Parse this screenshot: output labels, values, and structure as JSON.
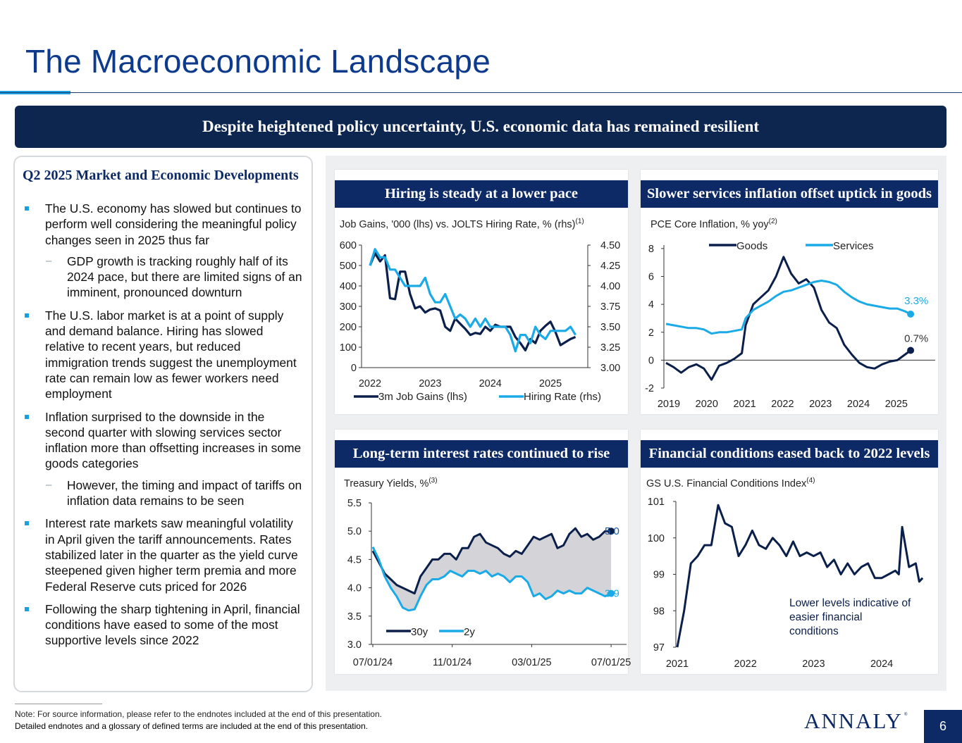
{
  "title": "The Macroeconomic Landscape",
  "banner": "Despite heightened policy uncertainty, U.S. economic data has remained resilient",
  "left": {
    "heading": "Q2 2025 Market and Economic Developments",
    "bullets": [
      {
        "level": 1,
        "text": "The U.S. economy has slowed but continues to perform well considering the meaningful policy changes seen in 2025 thus far"
      },
      {
        "level": 2,
        "text": "GDP growth is tracking roughly half of its 2024 pace, but there are limited signs of an imminent, pronounced downturn"
      },
      {
        "level": 1,
        "text": "The U.S. labor market is at a point of supply and demand balance. Hiring has slowed relative to recent years, but reduced immigration trends suggest the unemployment rate can remain low as fewer workers need employment"
      },
      {
        "level": 1,
        "text": "Inflation surprised to the downside in the second quarter with slowing services sector inflation more than offsetting increases in some goods categories"
      },
      {
        "level": 2,
        "text": "However, the timing and impact of tariffs on inflation data remains to be seen"
      },
      {
        "level": 1,
        "text": "Interest rate markets saw meaningful volatility in April given the tariff announcements. Rates stabilized later in the quarter as the yield curve steepened given higher term premia and more Federal Reserve cuts priced for 2026"
      },
      {
        "level": 1,
        "text": "Following the sharp tightening in April, financial conditions have eased to some of the most supportive levels since 2022"
      }
    ]
  },
  "colors": {
    "navy": "#0d2a66",
    "dark_line": "#0b1f4b",
    "light_line": "#1aaae6",
    "accent": "#1aa0de"
  },
  "chart_data": [
    {
      "type": "line",
      "panel_title": "Hiring is steady at a lower pace",
      "title": "Job Gains, '000 (lhs) vs. JOLTS Hiring Rate, % (rhs)",
      "title_sup": "(1)",
      "x_ticks": [
        "2022",
        "2023",
        "2024",
        "2025"
      ],
      "xlim": [
        2022.0,
        2025.55
      ],
      "y_left": {
        "ticks": [
          "600",
          "500",
          "400",
          "300",
          "200",
          "100",
          "0"
        ],
        "lim": [
          0,
          600
        ]
      },
      "y_right": {
        "ticks": [
          "4.50",
          "4.25",
          "4.00",
          "3.75",
          "3.50",
          "3.25",
          "3.00"
        ],
        "lim": [
          3.0,
          4.5
        ]
      },
      "series": [
        {
          "name": "3m Job Gains (lhs)",
          "axis": "left",
          "color": "#0b1f4b",
          "x": [
            2022.0,
            2022.083,
            2022.167,
            2022.25,
            2022.333,
            2022.417,
            2022.5,
            2022.583,
            2022.667,
            2022.75,
            2022.833,
            2022.917,
            2023.0,
            2023.083,
            2023.167,
            2023.25,
            2023.333,
            2023.417,
            2023.5,
            2023.583,
            2023.667,
            2023.75,
            2023.833,
            2023.917,
            2024.0,
            2024.083,
            2024.167,
            2024.25,
            2024.333,
            2024.417,
            2024.5,
            2024.583,
            2024.667,
            2024.75,
            2024.833,
            2024.917,
            2025.0,
            2025.083,
            2025.167,
            2025.25,
            2025.333,
            2025.417
          ],
          "y": [
            500,
            560,
            520,
            550,
            340,
            335,
            470,
            470,
            360,
            290,
            300,
            270,
            285,
            290,
            280,
            200,
            180,
            240,
            215,
            190,
            160,
            170,
            165,
            200,
            180,
            210,
            200,
            200,
            200,
            150,
            120,
            85,
            140,
            120,
            180,
            205,
            225,
            175,
            110,
            125,
            140,
            150
          ]
        },
        {
          "name": "Hiring Rate (rhs)",
          "axis": "right",
          "color": "#1aaae6",
          "x": [
            2022.0,
            2022.083,
            2022.167,
            2022.25,
            2022.333,
            2022.417,
            2022.5,
            2022.583,
            2022.667,
            2022.75,
            2022.833,
            2022.917,
            2023.0,
            2023.083,
            2023.167,
            2023.25,
            2023.333,
            2023.417,
            2023.5,
            2023.583,
            2023.667,
            2023.75,
            2023.833,
            2023.917,
            2024.0,
            2024.083,
            2024.167,
            2024.25,
            2024.333,
            2024.417,
            2024.5,
            2024.583,
            2024.667,
            2024.75,
            2024.833,
            2024.917,
            2025.0,
            2025.083,
            2025.167,
            2025.25,
            2025.333,
            2025.417
          ],
          "y": [
            4.25,
            4.45,
            4.35,
            4.35,
            4.2,
            4.2,
            4.1,
            4.0,
            4.0,
            4.0,
            4.0,
            4.1,
            3.9,
            3.8,
            3.8,
            3.9,
            3.75,
            3.6,
            3.65,
            3.6,
            3.5,
            3.6,
            3.5,
            3.6,
            3.5,
            3.5,
            3.5,
            3.5,
            3.4,
            3.2,
            3.4,
            3.4,
            3.3,
            3.5,
            3.4,
            3.35,
            3.45,
            3.45,
            3.45,
            3.45,
            3.5,
            3.4
          ]
        }
      ]
    },
    {
      "type": "line",
      "panel_title": "Slower services inflation offset uptick in goods",
      "title": "PCE Core Inflation, % yoy",
      "title_sup": "(2)",
      "x_ticks": [
        "2019",
        "2020",
        "2021",
        "2022",
        "2023",
        "2024",
        "2025"
      ],
      "xlim": [
        2019.0,
        2025.95
      ],
      "y_ticks": [
        "8",
        "6",
        "4",
        "2",
        "0",
        "-2"
      ],
      "ylim": [
        -2,
        8.5
      ],
      "end_labels": [
        "3.3%",
        "0.7%"
      ],
      "series": [
        {
          "name": "Goods",
          "color": "#0b1f4b",
          "x": [
            2019.0,
            2019.2,
            2019.4,
            2019.6,
            2019.8,
            2020.0,
            2020.2,
            2020.4,
            2020.6,
            2020.8,
            2021.0,
            2021.1,
            2021.3,
            2021.5,
            2021.7,
            2021.9,
            2022.1,
            2022.3,
            2022.5,
            2022.7,
            2022.9,
            2023.1,
            2023.3,
            2023.5,
            2023.7,
            2023.9,
            2024.1,
            2024.3,
            2024.5,
            2024.7,
            2024.9,
            2025.1,
            2025.3,
            2025.45
          ],
          "y": [
            -0.2,
            -0.5,
            -0.9,
            -0.5,
            -0.3,
            -0.6,
            -1.4,
            -0.4,
            -0.2,
            0.1,
            0.5,
            2.5,
            4.0,
            4.5,
            5.0,
            6.0,
            7.4,
            6.2,
            5.5,
            5.8,
            5.2,
            3.6,
            2.7,
            2.3,
            1.1,
            0.4,
            -0.2,
            -0.5,
            -0.6,
            -0.3,
            -0.1,
            0.0,
            0.4,
            0.7
          ]
        },
        {
          "name": "Services",
          "color": "#1aaae6",
          "x": [
            2019.0,
            2019.2,
            2019.4,
            2019.6,
            2019.8,
            2020.0,
            2020.2,
            2020.4,
            2020.6,
            2020.8,
            2021.0,
            2021.1,
            2021.3,
            2021.5,
            2021.7,
            2021.9,
            2022.1,
            2022.3,
            2022.5,
            2022.7,
            2022.9,
            2023.1,
            2023.3,
            2023.5,
            2023.7,
            2023.9,
            2024.1,
            2024.3,
            2024.5,
            2024.7,
            2024.9,
            2025.1,
            2025.3,
            2025.45
          ],
          "y": [
            2.6,
            2.5,
            2.4,
            2.3,
            2.3,
            2.2,
            1.9,
            2.0,
            2.0,
            2.1,
            2.2,
            3.0,
            3.6,
            3.9,
            4.2,
            4.6,
            4.9,
            5.0,
            5.2,
            5.4,
            5.6,
            5.7,
            5.6,
            5.4,
            4.9,
            4.5,
            4.2,
            4.0,
            3.9,
            3.8,
            3.7,
            3.7,
            3.5,
            3.3
          ]
        }
      ]
    },
    {
      "type": "line",
      "panel_title": "Long-term interest rates continued to rise",
      "title": "Treasury Yields, %",
      "title_sup": "(3)",
      "x_ticks": [
        "07/01/24",
        "11/01/24",
        "03/01/25",
        "07/01/25"
      ],
      "xlim": [
        0,
        12.6
      ],
      "y_ticks": [
        "5.5",
        "5.0",
        "4.5",
        "4.0",
        "3.5",
        "3.0"
      ],
      "ylim": [
        3.0,
        5.5
      ],
      "end_labels": [
        "5.0",
        "3.9"
      ],
      "series": [
        {
          "name": "30y",
          "color": "#0b1f4b",
          "x": [
            0,
            0.3,
            0.6,
            0.9,
            1.2,
            1.5,
            1.8,
            2.1,
            2.4,
            2.7,
            3.0,
            3.3,
            3.6,
            3.9,
            4.2,
            4.5,
            4.8,
            5.1,
            5.4,
            5.7,
            6.0,
            6.3,
            6.6,
            6.9,
            7.2,
            7.5,
            7.8,
            8.1,
            8.4,
            8.7,
            9.0,
            9.3,
            9.6,
            9.9,
            10.2,
            10.5,
            10.8,
            11.1,
            11.4,
            11.7,
            12.0
          ],
          "y": [
            4.65,
            4.45,
            4.25,
            4.15,
            4.05,
            4.0,
            3.95,
            3.9,
            4.2,
            4.35,
            4.5,
            4.5,
            4.6,
            4.6,
            4.5,
            4.7,
            4.7,
            4.9,
            4.95,
            4.8,
            4.75,
            4.7,
            4.6,
            4.55,
            4.65,
            4.6,
            4.75,
            4.9,
            4.85,
            4.9,
            4.95,
            4.7,
            4.75,
            4.95,
            5.05,
            4.9,
            4.95,
            4.85,
            4.9,
            5.0,
            5.0
          ]
        },
        {
          "name": "2y",
          "color": "#1aaae6",
          "x": [
            0,
            0.3,
            0.6,
            0.9,
            1.2,
            1.5,
            1.8,
            2.1,
            2.4,
            2.7,
            3.0,
            3.3,
            3.6,
            3.9,
            4.2,
            4.5,
            4.8,
            5.1,
            5.4,
            5.7,
            6.0,
            6.3,
            6.6,
            6.9,
            7.2,
            7.5,
            7.8,
            8.1,
            8.4,
            8.7,
            9.0,
            9.3,
            9.6,
            9.9,
            10.2,
            10.5,
            10.8,
            11.1,
            11.4,
            11.7,
            12.0
          ],
          "y": [
            4.72,
            4.5,
            4.2,
            4.0,
            3.85,
            3.65,
            3.6,
            3.62,
            3.85,
            4.05,
            4.15,
            4.15,
            4.2,
            4.3,
            4.25,
            4.2,
            4.3,
            4.3,
            4.25,
            4.3,
            4.2,
            4.25,
            4.2,
            4.1,
            4.2,
            4.2,
            4.1,
            3.85,
            3.9,
            3.8,
            3.85,
            3.95,
            3.9,
            3.95,
            3.9,
            3.9,
            4.0,
            3.95,
            3.9,
            3.85,
            3.9
          ]
        }
      ]
    },
    {
      "type": "line",
      "panel_title": "Financial conditions eased back to 2022 levels",
      "title": "GS U.S. Financial Conditions Index",
      "title_sup": "(4)",
      "x_ticks": [
        "2021",
        "2022",
        "2023",
        "2024"
      ],
      "xlim": [
        2021.0,
        2024.63
      ],
      "y_ticks": [
        "101",
        "100",
        "99",
        "98",
        "97"
      ],
      "ylim": [
        97,
        101
      ],
      "annotation": [
        "Lower levels indicative of",
        "easier financial",
        "conditions"
      ],
      "series": [
        {
          "name": "FCI",
          "color": "#0b1f4b",
          "x": [
            2021.0,
            2021.05,
            2021.1,
            2021.2,
            2021.3,
            2021.4,
            2021.5,
            2021.6,
            2021.7,
            2021.8,
            2021.9,
            2022.0,
            2022.1,
            2022.2,
            2022.3,
            2022.4,
            2022.5,
            2022.6,
            2022.7,
            2022.8,
            2022.9,
            2023.0,
            2023.1,
            2023.2,
            2023.3,
            2023.4,
            2023.5,
            2023.6,
            2023.7,
            2023.8,
            2023.9,
            2024.0,
            2024.1,
            2024.2,
            2024.25,
            2024.3,
            2024.4,
            2024.5,
            2024.55,
            2024.6
          ],
          "y": [
            97.0,
            97.5,
            98.0,
            99.3,
            99.5,
            99.8,
            99.8,
            100.9,
            100.4,
            100.3,
            99.5,
            99.8,
            100.2,
            99.8,
            99.7,
            100.0,
            99.8,
            99.5,
            99.9,
            99.5,
            99.6,
            99.5,
            99.6,
            99.2,
            99.4,
            99.0,
            99.3,
            99.0,
            99.2,
            99.3,
            98.9,
            98.9,
            99.0,
            99.1,
            99.0,
            100.3,
            99.2,
            99.3,
            98.8,
            98.9
          ]
        }
      ]
    }
  ],
  "footer": {
    "note1": "Note: For source information, please refer to the endnotes included at the end of this presentation.",
    "note2": "Detailed endnotes and a glossary of defined terms are included at the end of this presentation.",
    "logo": "ANNALY",
    "logo_mark": "®",
    "page": "6"
  }
}
